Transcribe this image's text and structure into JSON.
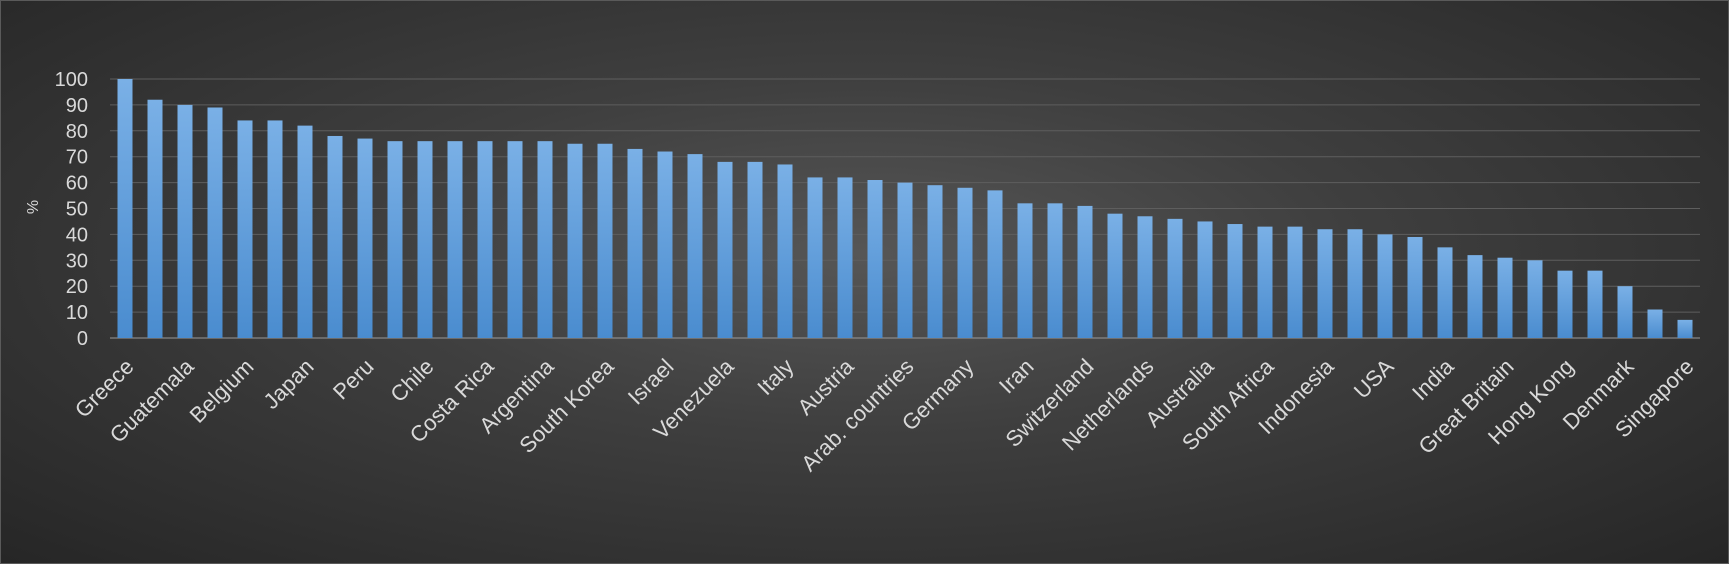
{
  "chart_data": {
    "type": "bar",
    "title": "",
    "xlabel": "",
    "ylabel": "%",
    "ylim": [
      0,
      100
    ],
    "yticks": [
      0,
      10,
      20,
      30,
      40,
      50,
      60,
      70,
      80,
      90,
      100
    ],
    "grid": true,
    "legend": "none",
    "bar_color": "#5b9bd5",
    "categories": [
      {
        "label": "Greece",
        "value": 100
      },
      {
        "label": "",
        "value": 92
      },
      {
        "label": "Guatemala",
        "value": 90
      },
      {
        "label": "",
        "value": 89
      },
      {
        "label": "Belgium",
        "value": 84
      },
      {
        "label": "",
        "value": 84
      },
      {
        "label": "Japan",
        "value": 82
      },
      {
        "label": "",
        "value": 78
      },
      {
        "label": "Peru",
        "value": 77
      },
      {
        "label": "",
        "value": 76
      },
      {
        "label": "Chile",
        "value": 76
      },
      {
        "label": "",
        "value": 76
      },
      {
        "label": "Costa Rica",
        "value": 76
      },
      {
        "label": "",
        "value": 76
      },
      {
        "label": "Argentina",
        "value": 76
      },
      {
        "label": "",
        "value": 75
      },
      {
        "label": "South Korea",
        "value": 75
      },
      {
        "label": "",
        "value": 73
      },
      {
        "label": "Israel",
        "value": 72
      },
      {
        "label": "",
        "value": 71
      },
      {
        "label": "Venezuela",
        "value": 68
      },
      {
        "label": "",
        "value": 68
      },
      {
        "label": "Italy",
        "value": 67
      },
      {
        "label": "",
        "value": 62
      },
      {
        "label": "Austria",
        "value": 62
      },
      {
        "label": "",
        "value": 61
      },
      {
        "label": "Arab. countries",
        "value": 60
      },
      {
        "label": "",
        "value": 59
      },
      {
        "label": "Germany",
        "value": 58
      },
      {
        "label": "",
        "value": 57
      },
      {
        "label": "Iran",
        "value": 52
      },
      {
        "label": "",
        "value": 52
      },
      {
        "label": "Switzerland",
        "value": 51
      },
      {
        "label": "",
        "value": 48
      },
      {
        "label": "Netherlands",
        "value": 47
      },
      {
        "label": "",
        "value": 46
      },
      {
        "label": "Australia",
        "value": 45
      },
      {
        "label": "",
        "value": 44
      },
      {
        "label": "South Africa",
        "value": 43
      },
      {
        "label": "",
        "value": 43
      },
      {
        "label": "Indonesia",
        "value": 42
      },
      {
        "label": "",
        "value": 42
      },
      {
        "label": "USA",
        "value": 40
      },
      {
        "label": "",
        "value": 39
      },
      {
        "label": "India",
        "value": 35
      },
      {
        "label": "",
        "value": 32
      },
      {
        "label": "Great Britain",
        "value": 31
      },
      {
        "label": "",
        "value": 30
      },
      {
        "label": "Hong Kong",
        "value": 26
      },
      {
        "label": "",
        "value": 26
      },
      {
        "label": "Denmark",
        "value": 20
      },
      {
        "label": "",
        "value": 11
      },
      {
        "label": "Singapore",
        "value": 7
      }
    ]
  }
}
